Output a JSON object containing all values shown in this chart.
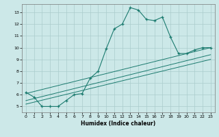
{
  "xlabel": "Humidex (Indice chaleur)",
  "bg_color": "#cce8e8",
  "grid_color": "#aacccc",
  "line_color": "#1a7a6e",
  "xlim": [
    -0.5,
    23.5
  ],
  "ylim": [
    4.5,
    13.7
  ],
  "xticks": [
    0,
    1,
    2,
    3,
    4,
    5,
    6,
    7,
    8,
    9,
    10,
    11,
    12,
    13,
    14,
    15,
    16,
    17,
    18,
    19,
    20,
    21,
    22,
    23
  ],
  "yticks": [
    5,
    6,
    7,
    8,
    9,
    10,
    11,
    12,
    13
  ],
  "curve_x": [
    0,
    1,
    2,
    3,
    4,
    5,
    6,
    7,
    8,
    9,
    10,
    11,
    12,
    13,
    14,
    15,
    16,
    17,
    18,
    19,
    20,
    21,
    22,
    23
  ],
  "curve_y": [
    6.2,
    5.8,
    5.0,
    5.0,
    5.0,
    5.5,
    6.0,
    6.1,
    7.4,
    8.0,
    9.9,
    11.6,
    12.0,
    13.4,
    13.2,
    12.4,
    12.3,
    12.6,
    10.9,
    9.5,
    9.5,
    9.8,
    10.0,
    10.0
  ],
  "line2_x": [
    0,
    23
  ],
  "line2_y": [
    6.1,
    10.0
  ],
  "line3_x": [
    0,
    23
  ],
  "line3_y": [
    5.5,
    9.4
  ],
  "line4_x": [
    0,
    23
  ],
  "line4_y": [
    5.2,
    9.0
  ]
}
